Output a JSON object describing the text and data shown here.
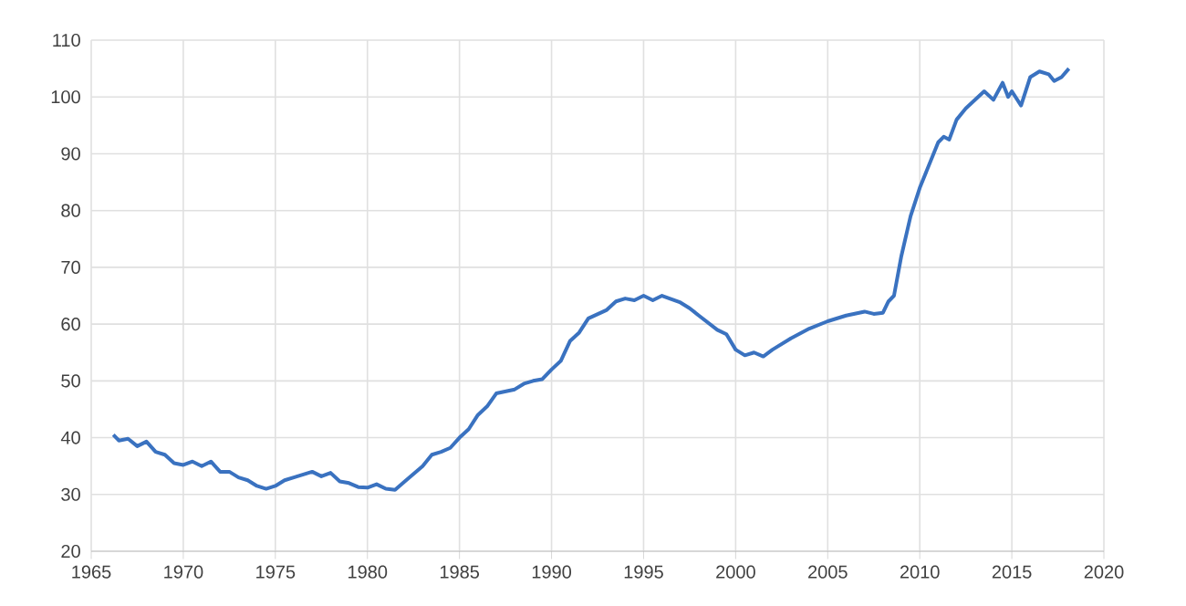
{
  "chart_data": {
    "type": "line",
    "xlim": [
      1965,
      2020
    ],
    "ylim": [
      20,
      110
    ],
    "xticks": [
      1965,
      1970,
      1975,
      1980,
      1985,
      1990,
      1995,
      2000,
      2005,
      2010,
      2015,
      2020
    ],
    "yticks": [
      20,
      30,
      40,
      50,
      60,
      70,
      80,
      90,
      100,
      110
    ],
    "grid": true,
    "series": [
      {
        "color": "#3a72c0",
        "x": [
          1966.2,
          1966.5,
          1967,
          1967.5,
          1968,
          1968.5,
          1969,
          1969.5,
          1970,
          1970.5,
          1971,
          1971.5,
          1972,
          1972.5,
          1973,
          1973.5,
          1974,
          1974.5,
          1975,
          1975.5,
          1976,
          1977,
          1977.5,
          1978,
          1978.5,
          1979,
          1979.5,
          1980,
          1980.5,
          1981,
          1981.5,
          1982,
          1983,
          1983.5,
          1984,
          1984.5,
          1985,
          1985.5,
          1986,
          1986.5,
          1987,
          1988,
          1988.5,
          1989,
          1989.5,
          1990,
          1990.5,
          1991,
          1991.5,
          1992,
          1993,
          1993.5,
          1994,
          1994.5,
          1995,
          1995.5,
          1996,
          1997,
          1997.5,
          1998,
          1999,
          1999.5,
          2000,
          2000.5,
          2001,
          2001.5,
          2002,
          2003,
          2004,
          2005,
          2006,
          2007,
          2007.5,
          2008,
          2008.3,
          2008.6,
          2009,
          2009.5,
          2010,
          2010.5,
          2011,
          2011.3,
          2011.6,
          2012,
          2012.5,
          2013,
          2013.5,
          2014,
          2014.5,
          2014.8,
          2015,
          2015.5,
          2016,
          2016.5,
          2017,
          2017.3,
          2017.7,
          2018.1
        ],
        "values": [
          40.5,
          39.5,
          39.8,
          38.5,
          39.3,
          37.5,
          37,
          35.5,
          35.2,
          35.8,
          35,
          35.8,
          34,
          34,
          33,
          32.5,
          31.5,
          31,
          31.5,
          32.5,
          33,
          34,
          33.2,
          33.8,
          32.3,
          32,
          31.3,
          31.2,
          31.8,
          31,
          30.8,
          32.2,
          35,
          37,
          37.5,
          38.2,
          40,
          41.5,
          44,
          45.5,
          47.8,
          48.5,
          49.5,
          50,
          50.3,
          52,
          53.5,
          57,
          58.5,
          61,
          62.5,
          64,
          64.5,
          64.2,
          65,
          64.2,
          65,
          63.8,
          62.8,
          61.5,
          59,
          58.2,
          55.5,
          54.5,
          55,
          54.3,
          55.5,
          57.5,
          59.2,
          60.5,
          61.5,
          62.2,
          61.8,
          62,
          64,
          65,
          72,
          79,
          84,
          88,
          92,
          93,
          92.5,
          96,
          98,
          99.5,
          101,
          99.5,
          102.5,
          100,
          101,
          98.5,
          103.5,
          104.5,
          104,
          102.8,
          103.5,
          105
        ]
      }
    ]
  }
}
